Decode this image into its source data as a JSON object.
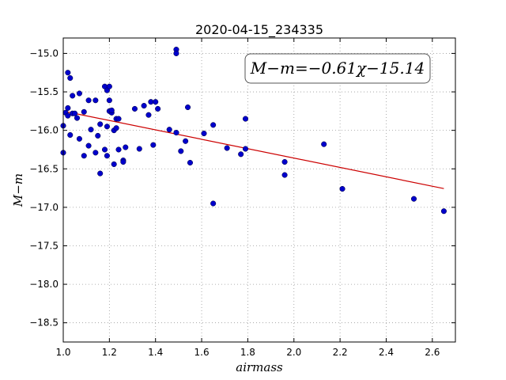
{
  "chart_data": {
    "type": "scatter",
    "title": "2020-04-15_234335",
    "xlabel": "airmass",
    "ylabel": "M−m",
    "xlim": [
      1.0,
      2.7
    ],
    "ylim": [
      -18.75,
      -14.8
    ],
    "grid": true,
    "x_ticks": [
      "1.0",
      "1.2",
      "1.4",
      "1.6",
      "1.8",
      "2.0",
      "2.2",
      "2.4",
      "2.6"
    ],
    "y_ticks": [
      "−15.0",
      "−15.5",
      "−16.0",
      "−16.5",
      "−17.0",
      "−17.5",
      "−18.0",
      "−18.5"
    ],
    "annotation": "M−m=−0.61χ−15.14",
    "colors": {
      "points": "#0000cc",
      "fit_line": "#cc0000",
      "grid": "#9a9a9a"
    },
    "fit": {
      "slope": -0.61,
      "intercept": -15.14,
      "x_range": [
        1.0,
        2.65
      ]
    },
    "points": [
      [
        1.0,
        -15.94
      ],
      [
        1.0,
        -16.29
      ],
      [
        1.01,
        -15.77
      ],
      [
        1.02,
        -15.25
      ],
      [
        1.02,
        -15.71
      ],
      [
        1.02,
        -15.81
      ],
      [
        1.03,
        -15.32
      ],
      [
        1.03,
        -16.06
      ],
      [
        1.04,
        -15.55
      ],
      [
        1.04,
        -15.78
      ],
      [
        1.05,
        -15.78
      ],
      [
        1.06,
        -15.84
      ],
      [
        1.07,
        -15.52
      ],
      [
        1.07,
        -16.11
      ],
      [
        1.09,
        -15.76
      ],
      [
        1.09,
        -16.33
      ],
      [
        1.11,
        -15.61
      ],
      [
        1.11,
        -16.2
      ],
      [
        1.12,
        -15.99
      ],
      [
        1.14,
        -15.61
      ],
      [
        1.14,
        -16.29
      ],
      [
        1.15,
        -16.07
      ],
      [
        1.16,
        -15.92
      ],
      [
        1.16,
        -16.56
      ],
      [
        1.18,
        -15.43
      ],
      [
        1.18,
        -16.25
      ],
      [
        1.19,
        -15.95
      ],
      [
        1.19,
        -16.33
      ],
      [
        1.19,
        -15.48
      ],
      [
        1.2,
        -15.43
      ],
      [
        1.2,
        -15.61
      ],
      [
        1.2,
        -15.75
      ],
      [
        1.21,
        -15.77
      ],
      [
        1.21,
        -15.74
      ],
      [
        1.22,
        -16.44
      ],
      [
        1.22,
        -16.0
      ],
      [
        1.23,
        -15.85
      ],
      [
        1.23,
        -15.97
      ],
      [
        1.24,
        -15.85
      ],
      [
        1.24,
        -16.25
      ],
      [
        1.26,
        -16.39
      ],
      [
        1.26,
        -16.41
      ],
      [
        1.27,
        -16.22
      ],
      [
        1.31,
        -15.72
      ],
      [
        1.33,
        -16.24
      ],
      [
        1.35,
        -15.68
      ],
      [
        1.37,
        -15.8
      ],
      [
        1.38,
        -15.63
      ],
      [
        1.39,
        -16.19
      ],
      [
        1.4,
        -15.63
      ],
      [
        1.41,
        -15.72
      ],
      [
        1.46,
        -15.99
      ],
      [
        1.49,
        -14.95
      ],
      [
        1.49,
        -15.0
      ],
      [
        1.49,
        -16.03
      ],
      [
        1.51,
        -16.27
      ],
      [
        1.53,
        -16.14
      ],
      [
        1.54,
        -15.7
      ],
      [
        1.55,
        -16.42
      ],
      [
        1.61,
        -16.04
      ],
      [
        1.65,
        -15.93
      ],
      [
        1.65,
        -16.95
      ],
      [
        1.71,
        -16.23
      ],
      [
        1.77,
        -16.31
      ],
      [
        1.79,
        -16.24
      ],
      [
        1.79,
        -15.85
      ],
      [
        1.96,
        -16.41
      ],
      [
        1.96,
        -16.58
      ],
      [
        2.13,
        -16.18
      ],
      [
        2.21,
        -16.76
      ],
      [
        2.52,
        -16.89
      ],
      [
        2.65,
        -17.05
      ]
    ]
  }
}
